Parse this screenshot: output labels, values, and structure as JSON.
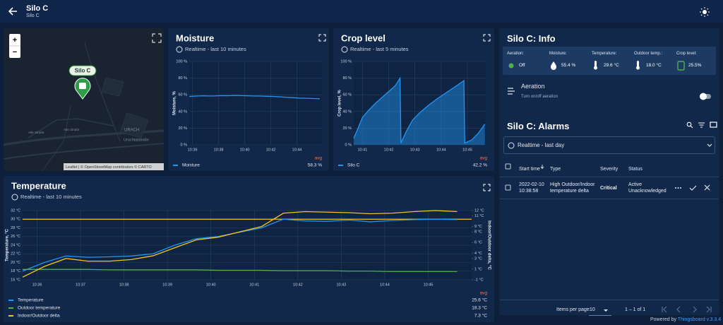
{
  "header": {
    "title": "Silo C",
    "subtitle": "Silo C"
  },
  "map": {
    "marker": "Silo C",
    "labels": [
      "URACH",
      "Urachtalstraße",
      "Alte Straße",
      "Alte Straße"
    ],
    "attribution": "Leaflet | © OpenStreetMap contributors © CARTO",
    "zoom_in": "+",
    "zoom_out": "−"
  },
  "chart_data": [
    {
      "type": "line",
      "title": "Moisture",
      "subtitle": "Realtime - last 10 minutes",
      "ylabel": "Moisture, %",
      "grid": true,
      "legend_header": "avg",
      "x": [
        "10:35:45",
        "10:36:15",
        "10:36:45",
        "10:37:15",
        "10:37:45",
        "10:38:15",
        "10:38:45",
        "10:39:15",
        "10:39:45",
        "10:40:15",
        "10:40:45",
        "10:41:15",
        "10:41:45",
        "10:42:15",
        "10:42:45",
        "10:43:15",
        "10:43:45",
        "10:44:15",
        "10:44:45",
        "10:45:15",
        "10:45:45"
      ],
      "xlim": [
        "10:35:45",
        "10:45:55"
      ],
      "xticks": [
        "10:36",
        "10:38",
        "10:40",
        "10:42",
        "10:44"
      ],
      "ylim": [
        0,
        100
      ],
      "yticks": [
        {
          "value": 0,
          "label": "0 %"
        },
        {
          "value": 20,
          "label": "20 %"
        },
        {
          "value": 40,
          "label": "40 %"
        },
        {
          "value": 60,
          "label": "60 %"
        },
        {
          "value": 80,
          "label": "80 %"
        },
        {
          "value": 100,
          "label": "100 %"
        }
      ],
      "series": [
        {
          "name": "Moisture",
          "color": "#2196f3",
          "avg": "58.3 %",
          "values": [
            58,
            58.5,
            58.8,
            58.6,
            58.7,
            59,
            58.9,
            59.2,
            59,
            58.8,
            58.6,
            58.5,
            58.2,
            58,
            57.5,
            57,
            56.5,
            56,
            55.8,
            55.5,
            55.3
          ]
        }
      ]
    },
    {
      "type": "line",
      "title": "Crop level",
      "subtitle": "Realtime - last 5 minutes",
      "ylabel": "Crop level, %",
      "grid": true,
      "area": true,
      "legend_header": "avg",
      "x": [
        "10:40:40",
        "10:40:50",
        "10:41:00",
        "10:41:15",
        "10:41:30",
        "10:41:45",
        "10:42:00",
        "10:42:15",
        "10:42:26",
        "10:42:28",
        "10:42:40",
        "10:42:55",
        "10:43:10",
        "10:43:30",
        "10:43:50",
        "10:44:10",
        "10:44:30",
        "10:44:52",
        "10:44:54",
        "10:45:10",
        "10:45:25",
        "10:45:40"
      ],
      "xlim": [
        "10:40:40",
        "10:45:42"
      ],
      "xticks": [
        "10:41",
        "10:42",
        "10:43",
        "10:44",
        "10:45"
      ],
      "ylim": [
        0,
        100
      ],
      "yticks": [
        {
          "value": 0,
          "label": "0 %"
        },
        {
          "value": 20,
          "label": "20 %"
        },
        {
          "value": 40,
          "label": "40 %"
        },
        {
          "value": 60,
          "label": "60 %"
        },
        {
          "value": 80,
          "label": "80 %"
        },
        {
          "value": 100,
          "label": "100 %"
        }
      ],
      "series": [
        {
          "name": "Silo C",
          "color": "#2196f3",
          "avg": "42.2 %",
          "values": [
            8,
            20,
            33,
            42,
            50,
            57,
            64,
            71,
            80,
            2,
            16,
            30,
            38,
            47,
            55,
            62,
            69,
            77,
            2,
            6,
            14,
            25
          ]
        }
      ]
    },
    {
      "type": "line",
      "title": "Temperature",
      "subtitle": "Realtime - last 10 minutes",
      "ylabel": "Temperature, °C",
      "y2label": "Indoor/Outdoor delta, °C",
      "grid": true,
      "legend_header": "avg",
      "threshold": {
        "value": 30,
        "color": "#f5c518"
      },
      "x": [
        "10:35:40",
        "10:36:10",
        "10:36:40",
        "10:37:10",
        "10:37:40",
        "10:38:10",
        "10:38:40",
        "10:39:10",
        "10:39:40",
        "10:40:10",
        "10:40:40",
        "10:41:10",
        "10:41:40",
        "10:42:10",
        "10:42:40",
        "10:43:10",
        "10:43:40",
        "10:44:10",
        "10:44:40",
        "10:45:10",
        "10:45:40"
      ],
      "xlim": [
        "10:35:40",
        "10:46:00"
      ],
      "xticks": [
        "10:36",
        "10:37",
        "10:38",
        "10:39",
        "10:40",
        "10:41",
        "10:42",
        "10:43",
        "10:44",
        "10:45"
      ],
      "ylim": [
        16,
        32
      ],
      "yticks": [
        {
          "value": 16,
          "label": "16 °C"
        },
        {
          "value": 18,
          "label": "18 °C"
        },
        {
          "value": 20,
          "label": "20 °C"
        },
        {
          "value": 22,
          "label": "22 °C"
        },
        {
          "value": 24,
          "label": "24 °C"
        },
        {
          "value": 26,
          "label": "26 °C"
        },
        {
          "value": 28,
          "label": "28 °C"
        },
        {
          "value": 30,
          "label": "30 °C"
        },
        {
          "value": 32,
          "label": "32 °C"
        }
      ],
      "y2lim": [
        -1,
        12
      ],
      "y2ticks": [
        {
          "value": -1,
          "label": "-1 °C"
        },
        {
          "value": 1,
          "label": "1 °C"
        },
        {
          "value": 3,
          "label": "3 °C"
        },
        {
          "value": 4,
          "label": "4 °C"
        },
        {
          "value": 6,
          "label": "6 °C"
        },
        {
          "value": 8,
          "label": "8 °C"
        },
        {
          "value": 9,
          "label": "9 °C"
        },
        {
          "value": 11,
          "label": "11 °C"
        },
        {
          "value": 12,
          "label": "12 °C"
        }
      ],
      "series": [
        {
          "name": "Temperature",
          "color": "#2196f3",
          "avg": "25.6 °C",
          "values": [
            18,
            20,
            21.5,
            21.2,
            21.3,
            21.5,
            22,
            24,
            25.5,
            26,
            27,
            28,
            30,
            29.6,
            29.5,
            29.8,
            29.4,
            29.7,
            29.9,
            30,
            29.9
          ]
        },
        {
          "name": "Outdoor temperature",
          "color": "#4caf50",
          "avg": "18.3 °C",
          "values": [
            18.4,
            18.4,
            18.4,
            18.4,
            18.3,
            18.3,
            18.3,
            18.3,
            18.3,
            18.2,
            18.2,
            18.2,
            18.1,
            18.1,
            18.1,
            18,
            18,
            17.9,
            17.9,
            17.9,
            17.9
          ]
        },
        {
          "name": "Indoor/Outdoor delta",
          "color": "#f5c518",
          "avg": "7.3 °C",
          "axis": "y2",
          "values": [
            -0.5,
            1.5,
            3,
            2.5,
            2.5,
            2.8,
            3.5,
            5,
            6.5,
            7,
            8,
            9,
            11.5,
            11.8,
            11.7,
            11.6,
            11.4,
            11.5,
            11.8,
            12,
            11.8
          ]
        }
      ]
    }
  ],
  "info": {
    "title": "Silo C: Info",
    "items": [
      {
        "label": "Aeration:",
        "value": "Off"
      },
      {
        "label": "Moisture:",
        "value": "55.4 %"
      },
      {
        "label": "Temperature:",
        "value": "29.6 °C"
      },
      {
        "label": "Outdoor temp.:",
        "value": "18.0 °C"
      },
      {
        "label": "Crop level:",
        "value": "25.5%"
      }
    ],
    "control": {
      "title": "Aeration",
      "subtitle": "Turn on/off aeration"
    }
  },
  "alarms": {
    "title": "Silo C: Alarms",
    "period": "Realtime - last day",
    "columns": [
      "Start time",
      "Type",
      "Severity",
      "Status"
    ],
    "rows": [
      [
        "2022-02-10 10:38:58",
        "High Outdoor/Indoor temperature delta",
        "Critical",
        "Active Unacknowledged"
      ]
    ],
    "pagination": {
      "label": "Items per page:",
      "size": "10",
      "range": "1 – 1 of 1"
    }
  },
  "footer": {
    "text": "Powered by",
    "link": "Thingsboard v.3.3.4"
  }
}
